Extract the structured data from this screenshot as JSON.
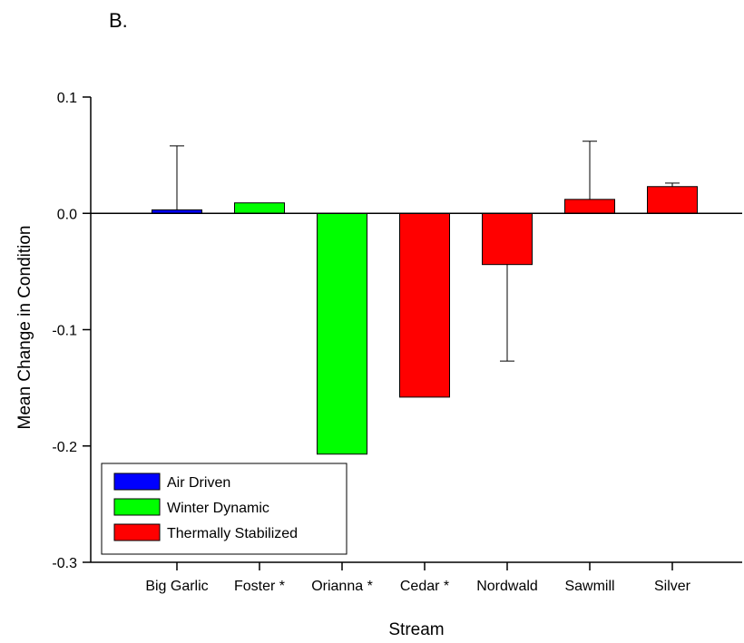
{
  "panel_label": "B.",
  "chart_data": {
    "type": "bar",
    "xlabel": "Stream",
    "ylabel": "Mean Change in Condition",
    "ylim": [
      -0.3,
      0.1
    ],
    "yticks": [
      0.1,
      0.0,
      -0.1,
      -0.2,
      -0.3
    ],
    "ytick_labels": [
      "0.1",
      "0.0",
      "-0.1",
      "-0.2",
      "-0.3"
    ],
    "categories": [
      "Big Garlic",
      "Foster *",
      "Orianna *",
      "Cedar *",
      "Nordwald",
      "Sawmill",
      "Silver"
    ],
    "values": [
      0.003,
      0.009,
      -0.207,
      -0.158,
      -0.044,
      0.012,
      0.023
    ],
    "error_ends": [
      0.058,
      null,
      null,
      null,
      -0.127,
      0.062,
      0.026
    ],
    "groups": [
      "Air Driven",
      "Winter Dynamic",
      "Winter Dynamic",
      "Thermally Stabilized",
      "Thermally Stabilized",
      "Thermally Stabilized",
      "Thermally Stabilized"
    ],
    "legend": [
      {
        "label": "Air Driven",
        "color": "#0000ff"
      },
      {
        "label": "Winter Dynamic",
        "color": "#00ff00"
      },
      {
        "label": "Thermally Stabilized",
        "color": "#ff0000"
      }
    ],
    "legend_position": "bottom-left",
    "grid": false
  }
}
